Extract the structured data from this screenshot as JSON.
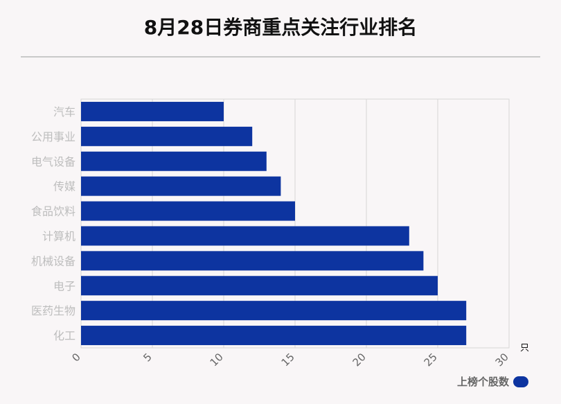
{
  "chart_data": {
    "type": "bar",
    "orientation": "horizontal",
    "title": "8月28日券商重点关注行业排名",
    "categories": [
      "汽车",
      "公用事业",
      "电气设备",
      "传媒",
      "食品饮料",
      "计算机",
      "机械设备",
      "电子",
      "医药生物",
      "化工"
    ],
    "series": [
      {
        "name": "上榜个股数",
        "values": [
          10,
          12,
          13,
          14,
          15,
          23,
          24,
          25,
          27,
          27
        ]
      }
    ],
    "xlim": [
      0,
      30
    ],
    "xticks": [
      "0",
      "5",
      "10",
      "15",
      "20",
      "25",
      "30"
    ],
    "x_unit": "只",
    "grid": true,
    "legend_position": "bottom-right",
    "colors": {
      "bar": "#0d34a0",
      "category_label": "#bdbdbd",
      "tick_label": "#666666",
      "grid": "#d6d6d6"
    }
  }
}
